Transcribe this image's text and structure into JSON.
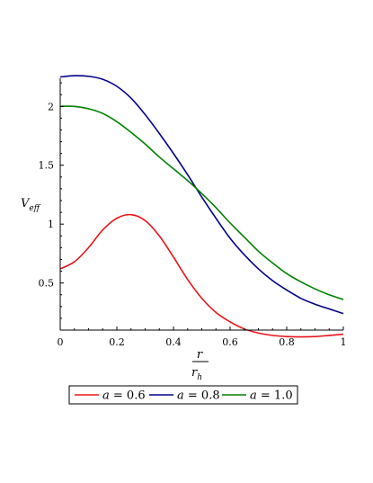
{
  "chart_data": {
    "type": "line",
    "ylabel": "V",
    "ylabel_sub": "eff",
    "xlabel_num": "r",
    "xlabel_den": "r",
    "xlabel_den_sub": "h",
    "xlim": [
      0,
      1
    ],
    "ylim": [
      0.1,
      2.3
    ],
    "x_ticks": [
      0,
      0.2,
      0.4,
      0.6,
      0.8,
      1
    ],
    "x_tick_labels": [
      "0",
      "0.2",
      "0.4",
      "0.6",
      "0.8",
      "1"
    ],
    "y_ticks": [
      0.5,
      1,
      1.5,
      2
    ],
    "y_tick_labels": [
      "0.5",
      "1",
      "1.5",
      "2"
    ],
    "grid": false,
    "legend_position": "bottom",
    "series": [
      {
        "name": "a = 0.6",
        "legend_var": "a",
        "legend_val": "= 0.6",
        "color": "#e8141a",
        "x": [
          0,
          0.05,
          0.1,
          0.15,
          0.2,
          0.25,
          0.3,
          0.35,
          0.4,
          0.45,
          0.5,
          0.55,
          0.6,
          0.65,
          0.7,
          0.75,
          0.8,
          0.85,
          0.9,
          0.95,
          1.0
        ],
        "y": [
          0.62,
          0.68,
          0.8,
          0.95,
          1.05,
          1.08,
          1.03,
          0.9,
          0.72,
          0.53,
          0.37,
          0.25,
          0.17,
          0.11,
          0.075,
          0.055,
          0.045,
          0.042,
          0.045,
          0.055,
          0.065
        ]
      },
      {
        "name": "a = 0.8",
        "legend_var": "a",
        "legend_val": "= 0.8",
        "color": "#00008b",
        "x": [
          0,
          0.05,
          0.1,
          0.15,
          0.2,
          0.25,
          0.3,
          0.35,
          0.4,
          0.45,
          0.5,
          0.55,
          0.6,
          0.65,
          0.7,
          0.75,
          0.8,
          0.85,
          0.9,
          0.95,
          1.0
        ],
        "y": [
          2.25,
          2.26,
          2.255,
          2.23,
          2.17,
          2.07,
          1.93,
          1.77,
          1.6,
          1.42,
          1.23,
          1.05,
          0.88,
          0.74,
          0.62,
          0.52,
          0.44,
          0.37,
          0.32,
          0.28,
          0.24
        ]
      },
      {
        "name": "a = 1.0",
        "legend_var": "a",
        "legend_val": "= 1.0",
        "color": "#008000",
        "x": [
          0,
          0.05,
          0.1,
          0.15,
          0.2,
          0.25,
          0.3,
          0.35,
          0.4,
          0.45,
          0.5,
          0.55,
          0.6,
          0.65,
          0.7,
          0.75,
          0.8,
          0.85,
          0.9,
          0.95,
          1.0
        ],
        "y": [
          2.0,
          2.0,
          1.98,
          1.94,
          1.87,
          1.78,
          1.68,
          1.57,
          1.47,
          1.37,
          1.26,
          1.14,
          1.01,
          0.89,
          0.77,
          0.67,
          0.58,
          0.51,
          0.45,
          0.4,
          0.36
        ]
      }
    ]
  }
}
